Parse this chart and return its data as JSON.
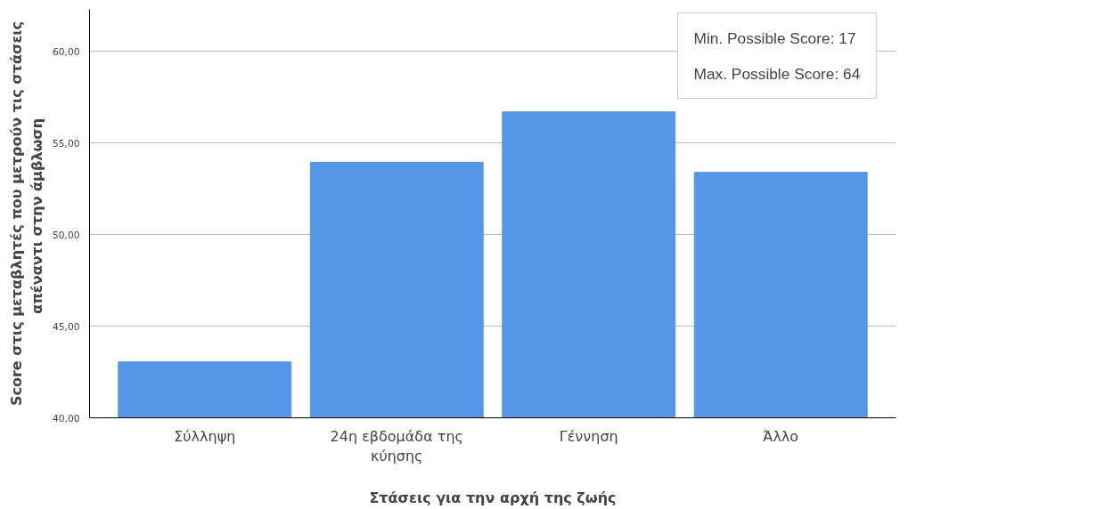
{
  "chart_data": {
    "type": "bar",
    "categories": [
      "Σύλληψη",
      "24η εβδομάδα της κύησης",
      "Γέννηση",
      "Άλλο"
    ],
    "values": [
      43.05,
      53.95,
      56.7,
      53.4
    ],
    "color": "#5596e6",
    "xlabel": "Στάσεις για την αρχή της ζωής",
    "ylabel": "Score στις μεταβλητές που μετρούν τις στάσεις απέναντι στην  άμβλωση",
    "ylim": [
      40,
      62.3
    ],
    "yticks": [
      {
        "value": 40,
        "label": "40,00"
      },
      {
        "value": 45,
        "label": "45,00"
      },
      {
        "value": 50,
        "label": "50,00"
      },
      {
        "value": 55,
        "label": "55,00"
      },
      {
        "value": 60,
        "label": "60,00"
      }
    ],
    "grid": "y",
    "annotations": [
      "Min. Possible Score: 17",
      "Max. Possible Score: 64"
    ]
  }
}
